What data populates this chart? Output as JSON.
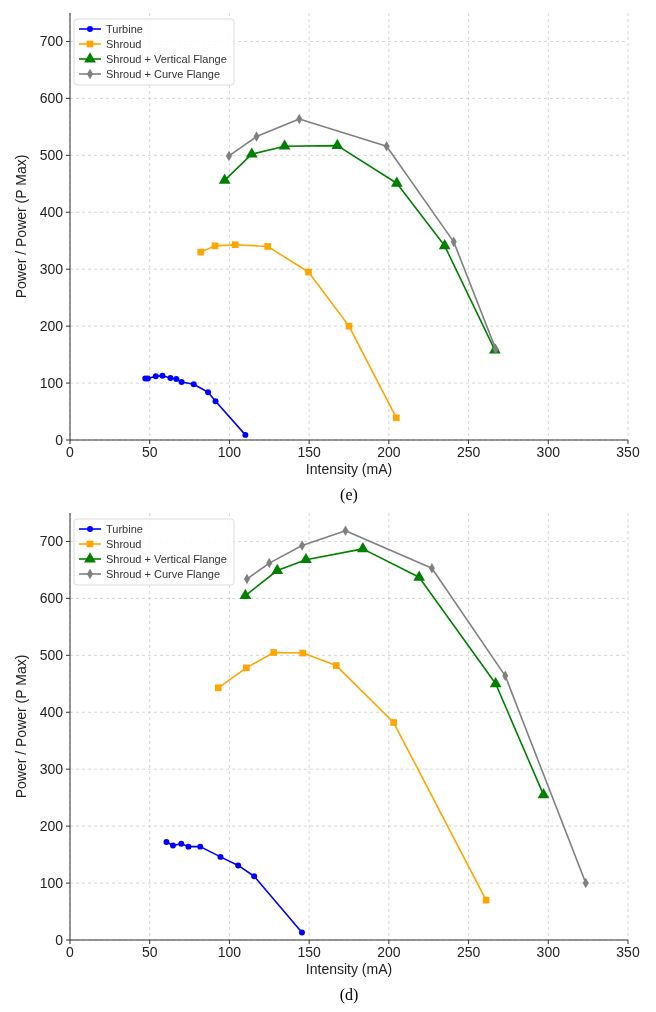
{
  "chart_data": [
    {
      "type": "line",
      "xlabel": "Intensity (mA)",
      "ylabel": "Power / Power (P Max)",
      "annotations": [
        "(e)"
      ],
      "xlim": [
        0,
        350
      ],
      "ylim": [
        0,
        750
      ],
      "xticks": [
        0,
        50,
        100,
        150,
        200,
        250,
        300,
        350
      ],
      "yticks": [
        0,
        100,
        200,
        300,
        400,
        500,
        600,
        700
      ],
      "grid": true,
      "legend": "top left",
      "series": [
        {
          "name": "Turbine",
          "color": "#0000ff",
          "marker": "circle",
          "x": [
            47.2,
            48.8,
            53.8,
            58,
            63,
            66.7,
            70,
            77.6,
            86.6,
            91.3,
            110
          ],
          "values": [
            108,
            108,
            112,
            113,
            109,
            107,
            102,
            98,
            84,
            68,
            9
          ]
        },
        {
          "name": "Shroud",
          "color": "#ffa500",
          "marker": "square",
          "x": [
            82,
            91,
            103.6,
            124,
            149.6,
            175,
            204.7
          ],
          "values": [
            330,
            341,
            343,
            340,
            295,
            200,
            39
          ]
        },
        {
          "name": "Shroud + Vertical Flange",
          "color": "#008000",
          "marker": "triangle",
          "x": [
            97,
            114,
            134.6,
            167.7,
            205,
            235,
            266.5
          ],
          "values": [
            456,
            502,
            516,
            517,
            451,
            341,
            158
          ]
        },
        {
          "name": "Shroud + Curve Flange",
          "color": "#808080",
          "marker": "diamond",
          "x": [
            99.7,
            117,
            143.8,
            198.6,
            240.7,
            267
          ],
          "values": [
            499,
            533,
            564,
            516,
            348,
            160
          ]
        }
      ]
    },
    {
      "type": "line",
      "xlabel": "Intensity (mA)",
      "ylabel": "Power / Power (P Max)",
      "annotations": [
        "(d)"
      ],
      "xlim": [
        0,
        350
      ],
      "ylim": [
        0,
        750
      ],
      "xticks": [
        0,
        50,
        100,
        150,
        200,
        250,
        300,
        350
      ],
      "yticks": [
        0,
        100,
        200,
        300,
        400,
        500,
        600,
        700
      ],
      "grid": true,
      "legend": "top left",
      "series": [
        {
          "name": "Turbine",
          "color": "#0000ff",
          "marker": "circle",
          "x": [
            60.5,
            64.6,
            69.8,
            74.3,
            81.7,
            94.4,
            105.5,
            115.5,
            145.5
          ],
          "values": [
            172,
            166,
            169,
            164,
            164,
            146,
            131,
            112,
            13
          ]
        },
        {
          "name": "Shroud",
          "color": "#ffa500",
          "marker": "square",
          "x": [
            93,
            110.6,
            127.8,
            146,
            167,
            203,
            261
          ],
          "values": [
            443,
            478,
            505,
            504,
            482,
            382,
            70
          ]
        },
        {
          "name": "Shroud + Vertical Flange",
          "color": "#008000",
          "marker": "triangle",
          "x": [
            110,
            130,
            148,
            183.7,
            219,
            267,
            297
          ],
          "values": [
            605,
            649,
            668,
            687,
            637,
            450,
            255
          ]
        },
        {
          "name": "Shroud + Curve Flange",
          "color": "#808080",
          "marker": "diamond",
          "x": [
            111,
            125,
            145.6,
            172.8,
            227,
            273,
            323.5
          ],
          "values": [
            634,
            662,
            693,
            719,
            653,
            464,
            100
          ]
        }
      ]
    }
  ]
}
